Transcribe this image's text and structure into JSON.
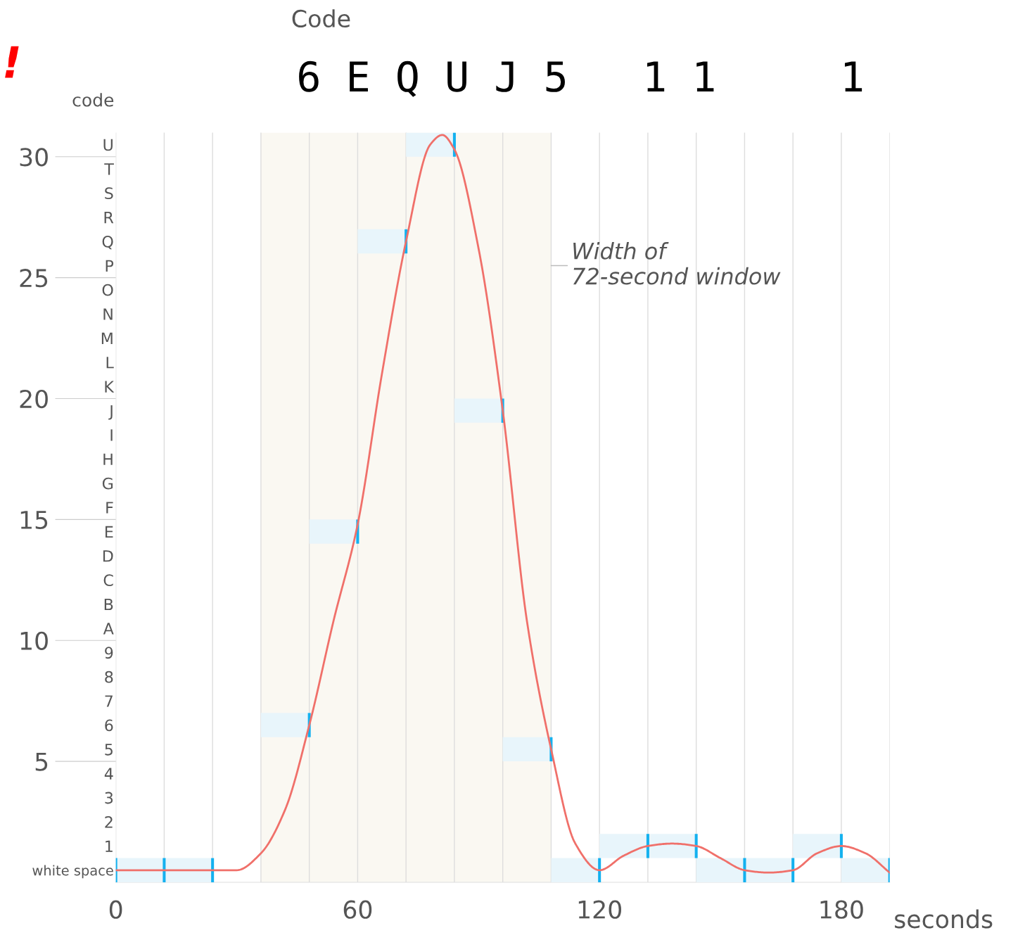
{
  "chart_data": {
    "type": "line",
    "title": "Code",
    "subtitle": "6 E Q U J 5   1 1     1",
    "xlabel": "seconds",
    "y2label": "code",
    "annotations": [
      "!"
    ],
    "series": [
      {
        "type": "bar",
        "color": "#e8f5fb",
        "x": [
          6,
          18,
          42,
          54,
          66,
          78,
          90,
          102,
          114,
          126,
          138,
          150,
          162,
          174,
          186
        ],
        "base": [
          0,
          0,
          6,
          14,
          26,
          30,
          19,
          5,
          0,
          1,
          1,
          0,
          0,
          1,
          0
        ],
        "values": [
          1,
          1,
          1,
          1,
          1,
          1,
          1,
          1,
          1,
          1,
          1,
          1,
          1,
          1,
          1
        ]
      },
      {
        "type": "bar",
        "color": "#14b1ef",
        "x": [
          0,
          12,
          24,
          48,
          60,
          72,
          84,
          96,
          108,
          120,
          132,
          144,
          156,
          168,
          180,
          192
        ],
        "base": [
          0,
          0,
          0,
          6,
          14,
          26,
          30,
          19,
          5,
          0,
          1,
          1,
          0,
          0,
          1,
          0
        ],
        "values": [
          1,
          1,
          1,
          1,
          1,
          1,
          1,
          1,
          1,
          1,
          1,
          1,
          1,
          1,
          1,
          1
        ]
      },
      {
        "color": "#f0706a",
        "x": [
          0,
          12,
          24,
          30,
          36,
          42,
          48,
          54,
          60,
          66,
          72,
          78,
          81,
          84,
          90,
          96,
          102,
          108,
          114,
          120,
          126,
          132,
          138,
          144,
          150,
          156,
          162,
          168,
          174,
          180,
          186,
          192
        ],
        "values": [
          0.5,
          0.5,
          0.5,
          0.5,
          1.2,
          3.0,
          6.5,
          10.8,
          14.8,
          21.0,
          26.5,
          30.5,
          30.9,
          30.3,
          26.2,
          19.5,
          10.8,
          5.5,
          1.6,
          0.5,
          1.1,
          1.5,
          1.6,
          1.5,
          1.0,
          0.5,
          0.4,
          0.5,
          1.2,
          1.5,
          1.2,
          0.4
        ]
      }
    ],
    "bands": [
      {
        "axis": "x",
        "from": 36,
        "to": 108,
        "color": "#faf8f2",
        "label": "Width of\n72-second window"
      }
    ],
    "xlim": [
      0,
      192
    ],
    "ylim": [
      0,
      31
    ],
    "xticks": [
      0,
      {
        "value": 12,
        "label": null
      },
      {
        "value": 24,
        "label": null
      },
      {
        "value": 36,
        "label": null
      },
      {
        "value": 48,
        "label": null
      },
      60,
      {
        "value": 72,
        "label": null
      },
      {
        "value": 84,
        "label": null
      },
      {
        "value": 96,
        "label": null
      },
      {
        "value": 108,
        "label": null
      },
      120,
      {
        "value": 132,
        "label": null
      },
      {
        "value": 144,
        "label": null
      },
      {
        "value": 156,
        "label": null
      },
      {
        "value": 168,
        "label": null
      },
      180,
      {
        "value": 192,
        "label": null
      }
    ],
    "yticks": [
      5,
      10,
      15,
      20,
      25,
      30
    ],
    "y2lim": [
      0,
      31
    ],
    "y2ticks": [
      {
        "value": 0.5,
        "label": "white space"
      },
      {
        "value": 1.5,
        "label": "1"
      },
      {
        "value": 2.5,
        "label": "2"
      },
      {
        "value": 3.5,
        "label": "3"
      },
      {
        "value": 4.5,
        "label": "4"
      },
      {
        "value": 5.5,
        "label": "5"
      },
      {
        "value": 6.5,
        "label": "6"
      },
      {
        "value": 7.5,
        "label": "7"
      },
      {
        "value": 8.5,
        "label": "8"
      },
      {
        "value": 9.5,
        "label": "9"
      },
      {
        "value": 10.5,
        "label": "A"
      },
      {
        "value": 11.5,
        "label": "B"
      },
      {
        "value": 12.5,
        "label": "C"
      },
      {
        "value": 13.5,
        "label": "D"
      },
      {
        "value": 14.5,
        "label": "E"
      },
      {
        "value": 15.5,
        "label": "F"
      },
      {
        "value": 16.5,
        "label": "G"
      },
      {
        "value": 17.5,
        "label": "H"
      },
      {
        "value": 18.5,
        "label": "I"
      },
      {
        "value": 19.5,
        "label": "J"
      },
      {
        "value": 20.5,
        "label": "K"
      },
      {
        "value": 21.5,
        "label": "L"
      },
      {
        "value": 22.5,
        "label": "M"
      },
      {
        "value": 23.5,
        "label": "N"
      },
      {
        "value": 24.5,
        "label": "O"
      },
      {
        "value": 25.5,
        "label": "P"
      },
      {
        "value": 26.5,
        "label": "Q"
      },
      {
        "value": 27.5,
        "label": "R"
      },
      {
        "value": 28.5,
        "label": "S"
      },
      {
        "value": 29.5,
        "label": "T"
      },
      {
        "value": 30.5,
        "label": "U"
      }
    ],
    "grid": "x",
    "legend": false
  }
}
